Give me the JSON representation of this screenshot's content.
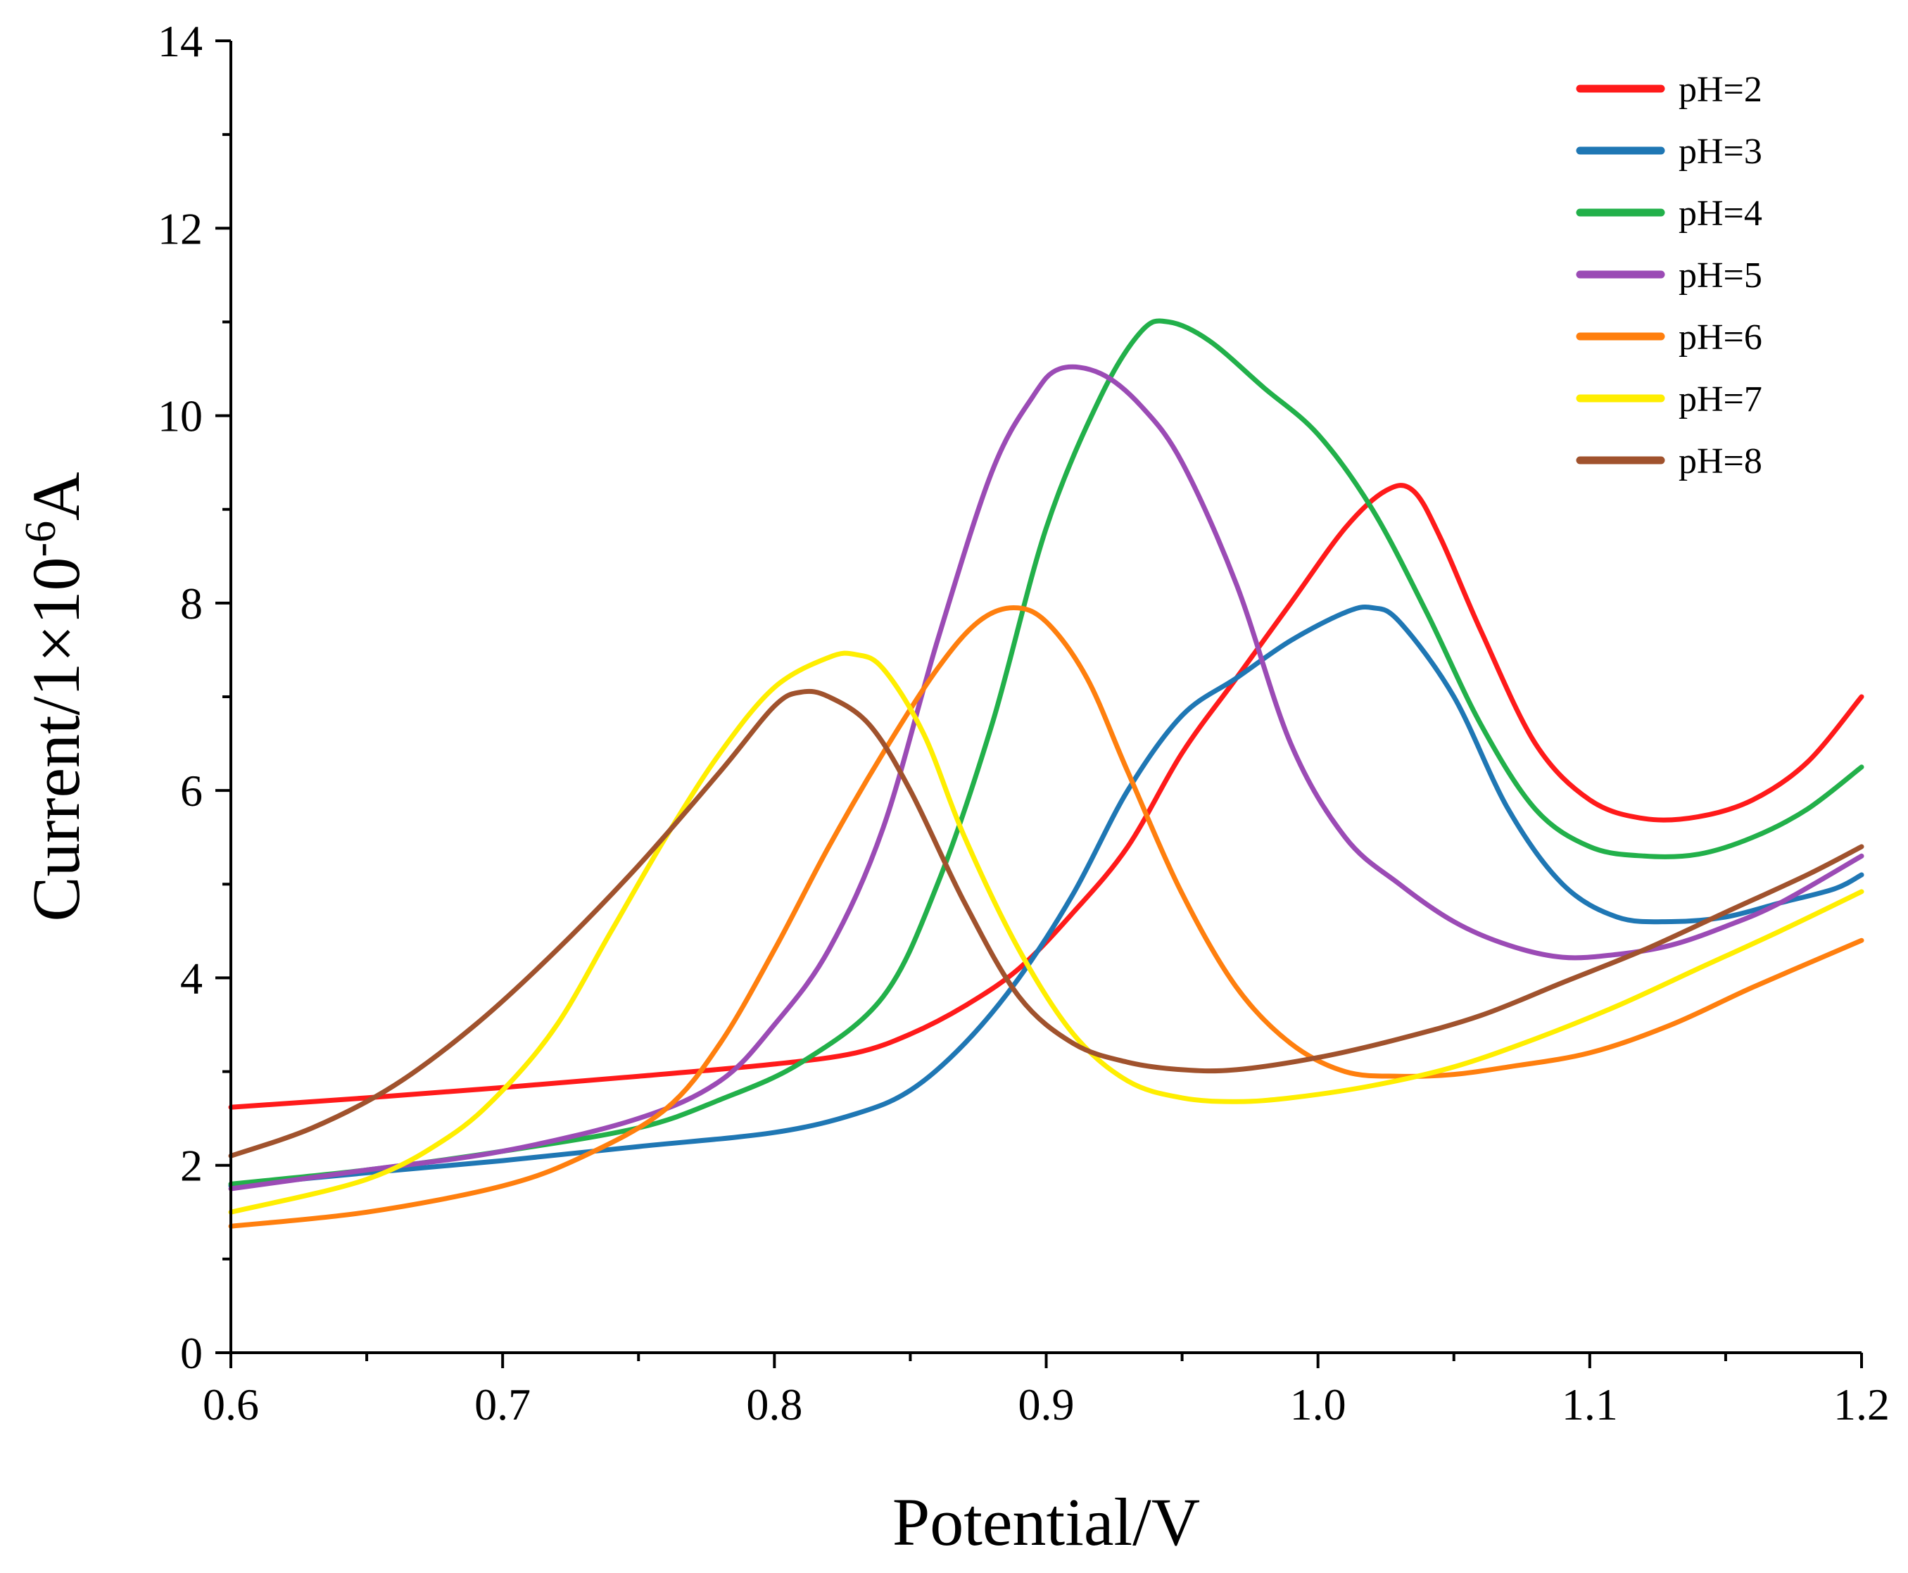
{
  "chart_data": {
    "type": "line",
    "title": "",
    "xlabel": "Potential/V",
    "ylabel_parts": {
      "prefix": "Current/1×10",
      "exponent": "-6",
      "suffix": "A"
    },
    "xlim": [
      0.6,
      1.2
    ],
    "ylim": [
      0,
      14
    ],
    "x_ticks": [
      0.6,
      0.7,
      0.8,
      0.9,
      1.0,
      1.1,
      1.2
    ],
    "x_tick_labels": [
      "0.6",
      "0.7",
      "0.8",
      "0.9",
      "1.0",
      "1.1",
      "1.2"
    ],
    "y_ticks": [
      0,
      2,
      4,
      6,
      8,
      10,
      12,
      14
    ],
    "y_tick_labels": [
      "0",
      "2",
      "4",
      "6",
      "8",
      "10",
      "12",
      "14"
    ],
    "grid": false,
    "legend_position": "top-right",
    "series": [
      {
        "name": "pH=2",
        "color": "#ff1a1a",
        "points": [
          [
            0.6,
            2.62
          ],
          [
            0.65,
            2.72
          ],
          [
            0.7,
            2.83
          ],
          [
            0.75,
            2.95
          ],
          [
            0.8,
            3.08
          ],
          [
            0.83,
            3.2
          ],
          [
            0.85,
            3.4
          ],
          [
            0.87,
            3.7
          ],
          [
            0.89,
            4.1
          ],
          [
            0.91,
            4.7
          ],
          [
            0.93,
            5.4
          ],
          [
            0.95,
            6.4
          ],
          [
            0.97,
            7.2
          ],
          [
            0.99,
            8.0
          ],
          [
            1.01,
            8.8
          ],
          [
            1.025,
            9.2
          ],
          [
            1.035,
            9.2
          ],
          [
            1.045,
            8.7
          ],
          [
            1.06,
            7.7
          ],
          [
            1.08,
            6.5
          ],
          [
            1.1,
            5.9
          ],
          [
            1.12,
            5.7
          ],
          [
            1.14,
            5.72
          ],
          [
            1.16,
            5.9
          ],
          [
            1.18,
            6.3
          ],
          [
            1.2,
            7.0
          ]
        ]
      },
      {
        "name": "pH=3",
        "color": "#1f77b4",
        "points": [
          [
            0.6,
            1.78
          ],
          [
            0.65,
            1.92
          ],
          [
            0.7,
            2.05
          ],
          [
            0.75,
            2.2
          ],
          [
            0.8,
            2.35
          ],
          [
            0.83,
            2.55
          ],
          [
            0.85,
            2.8
          ],
          [
            0.87,
            3.3
          ],
          [
            0.89,
            4.0
          ],
          [
            0.91,
            4.9
          ],
          [
            0.93,
            6.0
          ],
          [
            0.95,
            6.8
          ],
          [
            0.97,
            7.2
          ],
          [
            0.99,
            7.6
          ],
          [
            1.01,
            7.9
          ],
          [
            1.02,
            7.95
          ],
          [
            1.03,
            7.8
          ],
          [
            1.05,
            7.0
          ],
          [
            1.07,
            5.8
          ],
          [
            1.09,
            5.0
          ],
          [
            1.11,
            4.65
          ],
          [
            1.13,
            4.6
          ],
          [
            1.15,
            4.65
          ],
          [
            1.17,
            4.8
          ],
          [
            1.19,
            4.95
          ],
          [
            1.2,
            5.1
          ]
        ]
      },
      {
        "name": "pH=4",
        "color": "#22b04a",
        "points": [
          [
            0.6,
            1.8
          ],
          [
            0.65,
            1.95
          ],
          [
            0.7,
            2.15
          ],
          [
            0.75,
            2.4
          ],
          [
            0.78,
            2.7
          ],
          [
            0.81,
            3.1
          ],
          [
            0.84,
            3.8
          ],
          [
            0.86,
            5.0
          ],
          [
            0.88,
            6.7
          ],
          [
            0.9,
            8.8
          ],
          [
            0.92,
            10.2
          ],
          [
            0.935,
            10.9
          ],
          [
            0.945,
            11.0
          ],
          [
            0.96,
            10.8
          ],
          [
            0.98,
            10.3
          ],
          [
            1.0,
            9.8
          ],
          [
            1.02,
            9.0
          ],
          [
            1.04,
            7.9
          ],
          [
            1.06,
            6.7
          ],
          [
            1.08,
            5.8
          ],
          [
            1.1,
            5.4
          ],
          [
            1.12,
            5.3
          ],
          [
            1.14,
            5.32
          ],
          [
            1.16,
            5.5
          ],
          [
            1.18,
            5.8
          ],
          [
            1.2,
            6.25
          ]
        ]
      },
      {
        "name": "pH=5",
        "color": "#9b4bb5",
        "points": [
          [
            0.6,
            1.75
          ],
          [
            0.65,
            1.95
          ],
          [
            0.7,
            2.15
          ],
          [
            0.75,
            2.5
          ],
          [
            0.78,
            2.9
          ],
          [
            0.8,
            3.5
          ],
          [
            0.82,
            4.3
          ],
          [
            0.84,
            5.6
          ],
          [
            0.86,
            7.6
          ],
          [
            0.88,
            9.4
          ],
          [
            0.895,
            10.2
          ],
          [
            0.905,
            10.5
          ],
          [
            0.92,
            10.45
          ],
          [
            0.935,
            10.1
          ],
          [
            0.95,
            9.5
          ],
          [
            0.97,
            8.2
          ],
          [
            0.99,
            6.5
          ],
          [
            1.01,
            5.5
          ],
          [
            1.03,
            5.0
          ],
          [
            1.05,
            4.6
          ],
          [
            1.07,
            4.35
          ],
          [
            1.09,
            4.22
          ],
          [
            1.11,
            4.25
          ],
          [
            1.13,
            4.35
          ],
          [
            1.15,
            4.55
          ],
          [
            1.17,
            4.8
          ],
          [
            1.2,
            5.3
          ]
        ]
      },
      {
        "name": "pH=6",
        "color": "#ff7f0e",
        "points": [
          [
            0.6,
            1.35
          ],
          [
            0.65,
            1.5
          ],
          [
            0.7,
            1.78
          ],
          [
            0.73,
            2.1
          ],
          [
            0.76,
            2.6
          ],
          [
            0.78,
            3.3
          ],
          [
            0.8,
            4.3
          ],
          [
            0.82,
            5.4
          ],
          [
            0.84,
            6.4
          ],
          [
            0.86,
            7.3
          ],
          [
            0.875,
            7.8
          ],
          [
            0.888,
            7.95
          ],
          [
            0.9,
            7.8
          ],
          [
            0.915,
            7.2
          ],
          [
            0.93,
            6.2
          ],
          [
            0.95,
            4.9
          ],
          [
            0.97,
            3.9
          ],
          [
            0.99,
            3.3
          ],
          [
            1.01,
            3.0
          ],
          [
            1.03,
            2.95
          ],
          [
            1.05,
            2.97
          ],
          [
            1.07,
            3.05
          ],
          [
            1.1,
            3.2
          ],
          [
            1.13,
            3.5
          ],
          [
            1.16,
            3.9
          ],
          [
            1.2,
            4.4
          ]
        ]
      },
      {
        "name": "pH=7",
        "color": "#ffee00",
        "points": [
          [
            0.6,
            1.5
          ],
          [
            0.65,
            1.85
          ],
          [
            0.68,
            2.3
          ],
          [
            0.7,
            2.8
          ],
          [
            0.72,
            3.5
          ],
          [
            0.74,
            4.5
          ],
          [
            0.76,
            5.5
          ],
          [
            0.78,
            6.4
          ],
          [
            0.8,
            7.1
          ],
          [
            0.82,
            7.42
          ],
          [
            0.83,
            7.45
          ],
          [
            0.84,
            7.3
          ],
          [
            0.855,
            6.6
          ],
          [
            0.87,
            5.5
          ],
          [
            0.89,
            4.3
          ],
          [
            0.91,
            3.4
          ],
          [
            0.93,
            2.9
          ],
          [
            0.95,
            2.72
          ],
          [
            0.97,
            2.68
          ],
          [
            0.99,
            2.72
          ],
          [
            1.02,
            2.85
          ],
          [
            1.05,
            3.05
          ],
          [
            1.08,
            3.35
          ],
          [
            1.11,
            3.7
          ],
          [
            1.14,
            4.1
          ],
          [
            1.17,
            4.5
          ],
          [
            1.2,
            4.92
          ]
        ]
      },
      {
        "name": "pH=8",
        "color": "#a0522d",
        "points": [
          [
            0.6,
            2.1
          ],
          [
            0.63,
            2.4
          ],
          [
            0.66,
            2.85
          ],
          [
            0.69,
            3.5
          ],
          [
            0.72,
            4.3
          ],
          [
            0.75,
            5.2
          ],
          [
            0.78,
            6.2
          ],
          [
            0.8,
            6.9
          ],
          [
            0.81,
            7.05
          ],
          [
            0.82,
            7.0
          ],
          [
            0.835,
            6.7
          ],
          [
            0.85,
            6.0
          ],
          [
            0.87,
            4.8
          ],
          [
            0.89,
            3.8
          ],
          [
            0.91,
            3.3
          ],
          [
            0.93,
            3.1
          ],
          [
            0.95,
            3.02
          ],
          [
            0.97,
            3.02
          ],
          [
            1.0,
            3.15
          ],
          [
            1.03,
            3.35
          ],
          [
            1.06,
            3.6
          ],
          [
            1.09,
            3.95
          ],
          [
            1.12,
            4.3
          ],
          [
            1.15,
            4.7
          ],
          [
            1.18,
            5.1
          ],
          [
            1.2,
            5.4
          ]
        ]
      }
    ]
  }
}
